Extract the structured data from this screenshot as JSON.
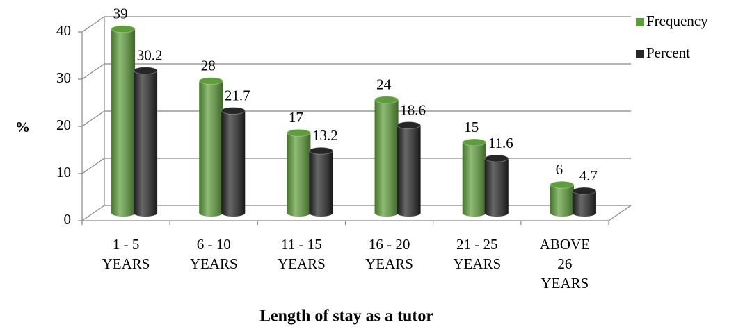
{
  "chart_data": {
    "type": "bar",
    "x_label": "Length of stay as a tutor",
    "y_label": "%",
    "categories": [
      "1 - 5\nYEARS",
      "6 - 10\nYEARS",
      "11 - 15\nYEARS",
      "16 - 20\nYEARS",
      "21 - 25\nYEARS",
      "ABOVE\n26\nYEARS"
    ],
    "series": [
      {
        "name": "Frequency",
        "color": "#5e9e3a",
        "values": [
          39,
          28,
          17,
          24,
          15,
          6
        ]
      },
      {
        "name": "Percent",
        "color": "#262626",
        "values": [
          30.2,
          21.7,
          13.2,
          18.6,
          11.6,
          4.7
        ]
      }
    ],
    "ylim": [
      0,
      40
    ],
    "yticks": [
      0,
      10,
      20,
      30,
      40
    ],
    "grid": true,
    "legend": "right"
  }
}
